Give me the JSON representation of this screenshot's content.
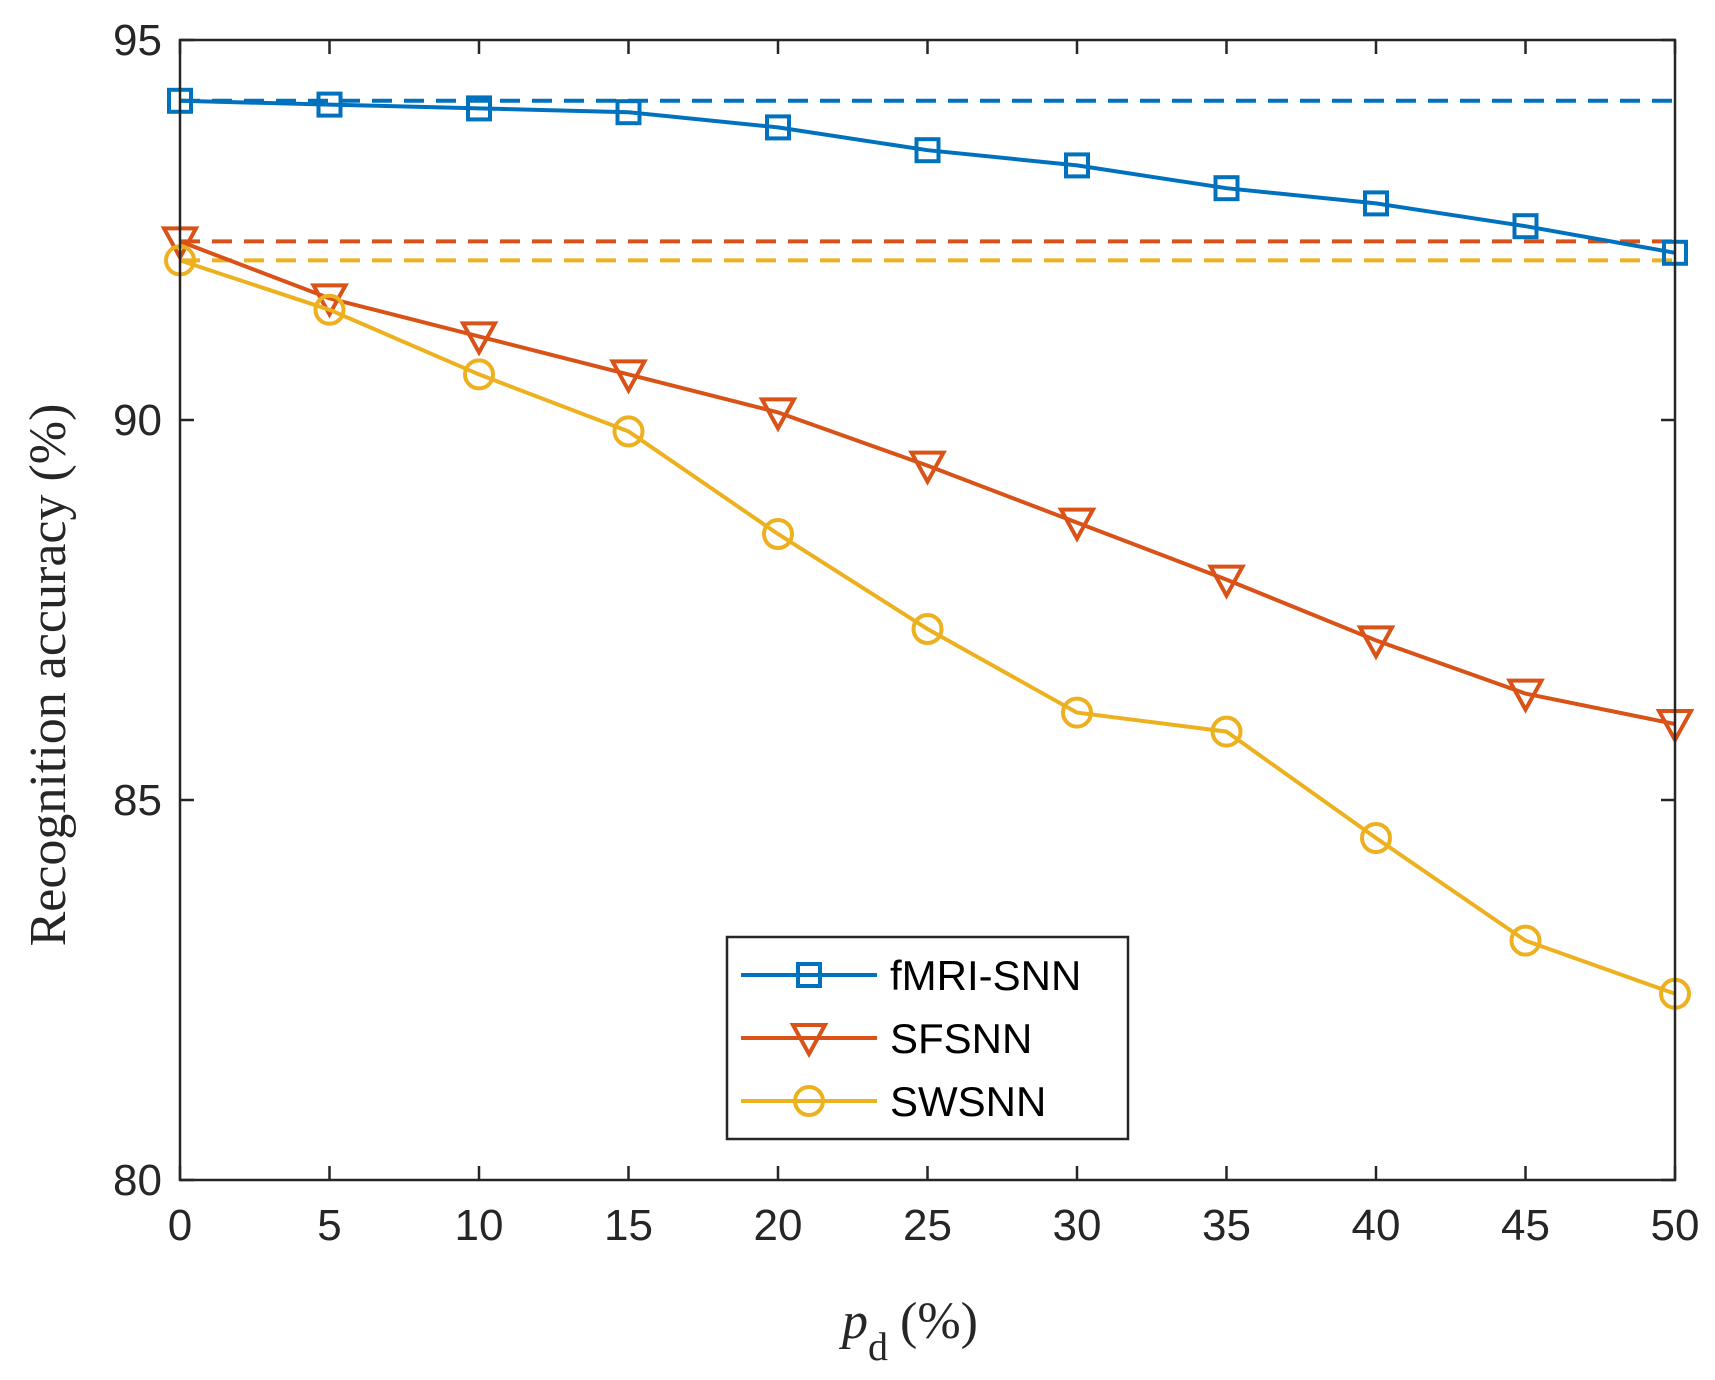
{
  "chart_data": {
    "type": "line",
    "title": "",
    "xlabel_main": "p",
    "xlabel_sub": "d",
    "xlabel_unit": "(%)",
    "ylabel": "Recognition accuracy (%)",
    "xlim": [
      0,
      50
    ],
    "ylim": [
      80,
      95
    ],
    "xticks": [
      0,
      5,
      10,
      15,
      20,
      25,
      30,
      35,
      40,
      45,
      50
    ],
    "yticks": [
      80,
      85,
      90,
      95
    ],
    "x": [
      0,
      5,
      10,
      15,
      20,
      25,
      30,
      35,
      40,
      45,
      50
    ],
    "legend_position": "lower-center",
    "series": [
      {
        "name": "fMRI-SNN",
        "color": "#0072BD",
        "marker": "square",
        "values": [
          94.2,
          94.15,
          94.1,
          94.05,
          93.85,
          93.55,
          93.35,
          93.05,
          92.85,
          92.55,
          92.2
        ],
        "baseline": 94.2
      },
      {
        "name": "SFSNN",
        "color": "#D95319",
        "marker": "triangle-down",
        "values": [
          92.35,
          91.6,
          91.1,
          90.6,
          90.1,
          89.4,
          88.65,
          87.9,
          87.1,
          86.4,
          86.0
        ],
        "baseline": 92.35
      },
      {
        "name": "SWSNN",
        "color": "#EDB120",
        "marker": "circle",
        "values": [
          92.1,
          91.45,
          90.6,
          89.85,
          88.5,
          87.25,
          86.15,
          85.9,
          84.5,
          83.15,
          82.45
        ],
        "baseline": 92.1
      }
    ]
  }
}
